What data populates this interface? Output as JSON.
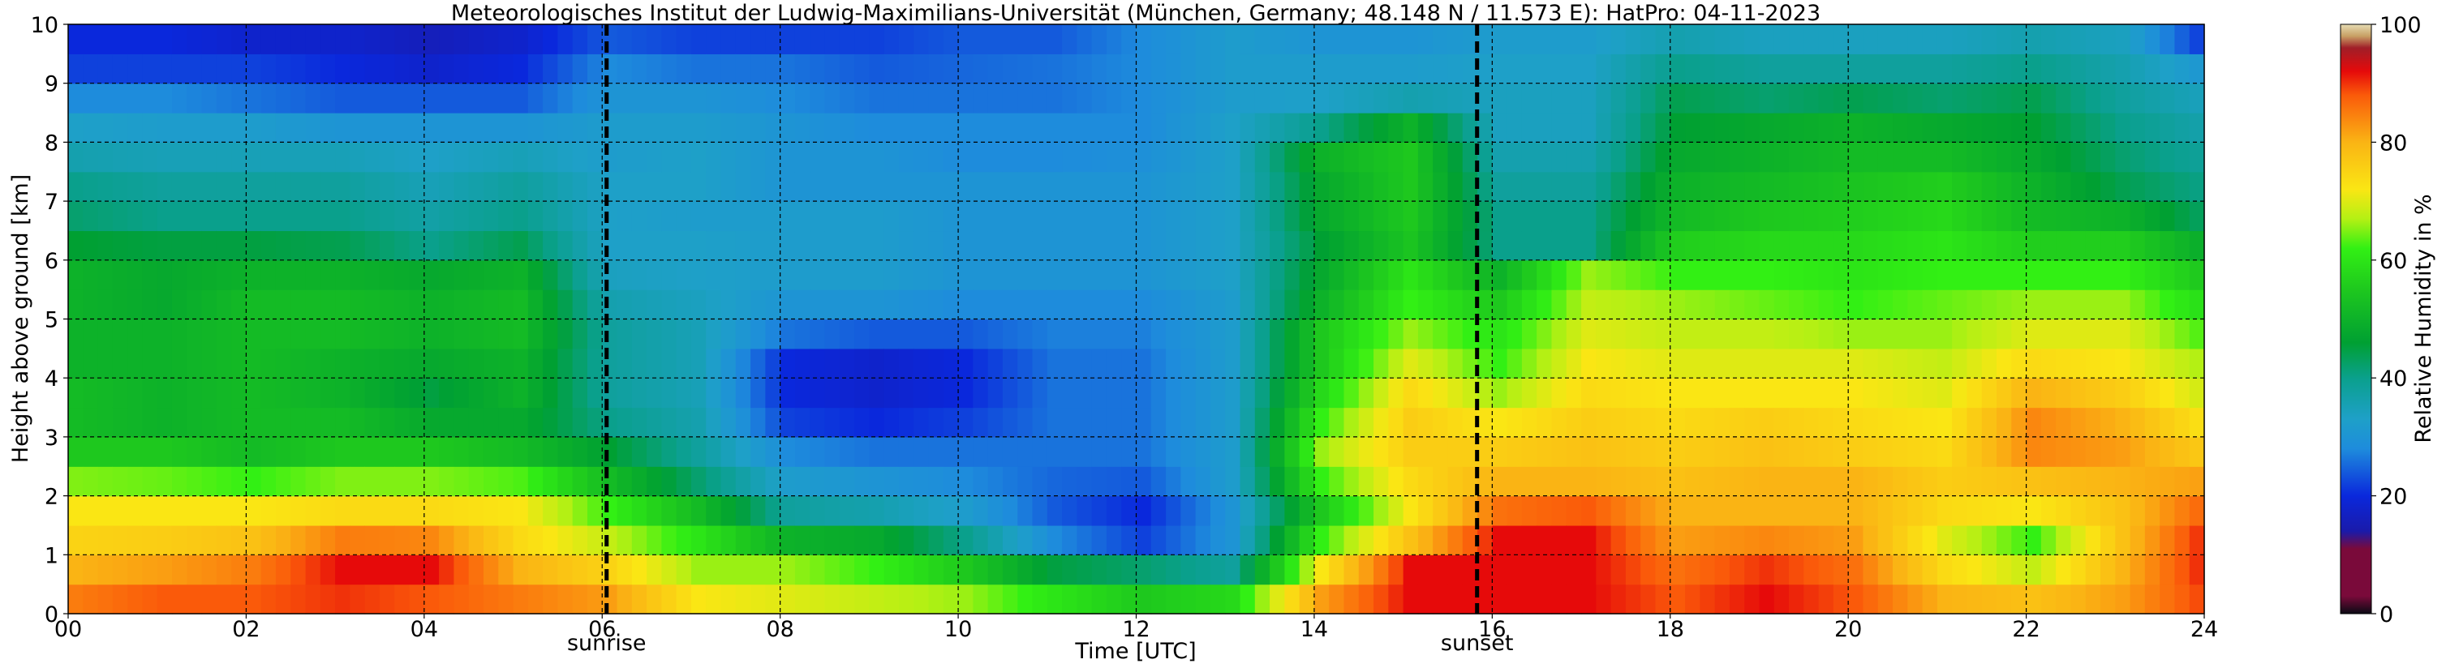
{
  "chart_data": {
    "type": "heatmap",
    "title": "Meteorologisches Institut der Ludwig-Maximilians-Universität (München, Germany; 48.148 N / 11.573 E):    HatPro: 04-11-2023",
    "xlabel": "Time [UTC]",
    "ylabel": "Height above ground [km]",
    "xlim": [
      0,
      24
    ],
    "ylim": [
      0,
      10
    ],
    "x_ticks": [
      "00",
      "02",
      "04",
      "06",
      "08",
      "10",
      "12",
      "14",
      "16",
      "18",
      "20",
      "22",
      "24"
    ],
    "y_ticks": [
      "0",
      "1",
      "2",
      "3",
      "4",
      "5",
      "6",
      "7",
      "8",
      "9",
      "10"
    ],
    "grid": true,
    "colorbar": {
      "label": "Relative Humidity in %",
      "range": [
        0,
        100
      ],
      "ticks": [
        "0",
        "20",
        "40",
        "60",
        "80",
        "100"
      ],
      "stops": [
        {
          "v": 0,
          "color": "#0a0a14"
        },
        {
          "v": 3,
          "color": "#7a0a3a"
        },
        {
          "v": 11,
          "color": "#7a0a3a"
        },
        {
          "v": 14,
          "color": "#1a1aaa"
        },
        {
          "v": 20,
          "color": "#0a28dc"
        },
        {
          "v": 28,
          "color": "#1e8cdc"
        },
        {
          "v": 33,
          "color": "#1ea0c8"
        },
        {
          "v": 40,
          "color": "#0aa08c"
        },
        {
          "v": 46,
          "color": "#00a032"
        },
        {
          "v": 55,
          "color": "#1ec81e"
        },
        {
          "v": 62,
          "color": "#32f014"
        },
        {
          "v": 67,
          "color": "#b4f014"
        },
        {
          "v": 72,
          "color": "#fae614"
        },
        {
          "v": 80,
          "color": "#fab414"
        },
        {
          "v": 88,
          "color": "#fa5a0a"
        },
        {
          "v": 92,
          "color": "#e60a0a"
        },
        {
          "v": 96,
          "color": "#a01e28"
        },
        {
          "v": 98,
          "color": "#c8a064"
        },
        {
          "v": 100,
          "color": "#e6dcb4"
        }
      ]
    },
    "annotations": [
      {
        "label": "sunrise",
        "x": 6.05
      },
      {
        "label": "sunset",
        "x": 15.83
      }
    ],
    "heights_km": [
      0.25,
      0.75,
      1.25,
      1.75,
      2.25,
      2.75,
      3.25,
      3.75,
      4.25,
      4.75,
      5.25,
      5.75,
      6.25,
      6.75,
      7.25,
      7.75,
      8.25,
      8.75,
      9.25,
      9.75
    ],
    "series": [
      {
        "time": 0,
        "rh": [
          85,
          80,
          75,
          72,
          65,
          55,
          52,
          52,
          50,
          50,
          50,
          50,
          46,
          42,
          40,
          36,
          33,
          28,
          22,
          20
        ]
      },
      {
        "time": 1,
        "rh": [
          88,
          82,
          76,
          72,
          64,
          55,
          50,
          50,
          50,
          50,
          48,
          48,
          45,
          40,
          38,
          35,
          32,
          28,
          22,
          20
        ]
      },
      {
        "time": 2,
        "rh": [
          88,
          85,
          78,
          72,
          62,
          52,
          52,
          52,
          52,
          52,
          52,
          50,
          45,
          40,
          38,
          35,
          32,
          26,
          22,
          18
        ]
      },
      {
        "time": 3,
        "rh": [
          90,
          92,
          85,
          74,
          65,
          55,
          52,
          50,
          50,
          52,
          52,
          50,
          44,
          40,
          38,
          35,
          30,
          24,
          20,
          18
        ]
      },
      {
        "time": 4,
        "rh": [
          88,
          92,
          84,
          74,
          65,
          55,
          48,
          45,
          48,
          50,
          50,
          48,
          40,
          37,
          35,
          33,
          30,
          24,
          18,
          16
        ]
      },
      {
        "time": 5,
        "rh": [
          85,
          80,
          74,
          72,
          63,
          52,
          48,
          50,
          50,
          52,
          52,
          50,
          44,
          40,
          38,
          35,
          30,
          24,
          20,
          18
        ]
      },
      {
        "time": 6,
        "rh": [
          82,
          75,
          68,
          62,
          52,
          46,
          40,
          38,
          38,
          38,
          36,
          34,
          33,
          33,
          33,
          32,
          32,
          30,
          28,
          24
        ]
      },
      {
        "time": 7,
        "rh": [
          72,
          66,
          60,
          52,
          42,
          38,
          36,
          35,
          35,
          35,
          34,
          33,
          33,
          32,
          33,
          33,
          32,
          30,
          26,
          22
        ]
      },
      {
        "time": 8,
        "rh": [
          70,
          66,
          50,
          38,
          32,
          28,
          22,
          20,
          20,
          26,
          30,
          32,
          32,
          32,
          30,
          30,
          30,
          28,
          26,
          22
        ]
      },
      {
        "time": 9,
        "rh": [
          68,
          62,
          48,
          36,
          30,
          26,
          20,
          18,
          18,
          24,
          30,
          32,
          32,
          32,
          30,
          30,
          28,
          26,
          24,
          22
        ]
      },
      {
        "time": 10,
        "rh": [
          66,
          55,
          40,
          32,
          28,
          26,
          22,
          20,
          20,
          24,
          28,
          30,
          30,
          30,
          30,
          28,
          28,
          26,
          25,
          24
        ]
      },
      {
        "time": 11,
        "rh": [
          60,
          45,
          28,
          24,
          25,
          26,
          26,
          26,
          26,
          27,
          28,
          30,
          30,
          30,
          30,
          28,
          28,
          26,
          26,
          24
        ]
      },
      {
        "time": 12,
        "rh": [
          55,
          42,
          22,
          20,
          24,
          26,
          26,
          26,
          26,
          27,
          28,
          30,
          30,
          30,
          30,
          29,
          28,
          28,
          28,
          28
        ]
      },
      {
        "time": 13,
        "rh": [
          58,
          38,
          30,
          30,
          32,
          32,
          32,
          32,
          32,
          32,
          32,
          33,
          33,
          33,
          33,
          33,
          33,
          32,
          32,
          32
        ]
      },
      {
        "time": 14,
        "rh": [
          82,
          72,
          62,
          55,
          62,
          66,
          62,
          58,
          55,
          55,
          50,
          48,
          46,
          48,
          48,
          50,
          40,
          33,
          32,
          30
        ]
      },
      {
        "time": 15,
        "rh": [
          92,
          92,
          78,
          72,
          74,
          76,
          76,
          74,
          70,
          66,
          62,
          60,
          54,
          55,
          55,
          55,
          50,
          36,
          32,
          30
        ]
      },
      {
        "time": 16,
        "rh": [
          92,
          92,
          92,
          86,
          80,
          76,
          72,
          66,
          62,
          60,
          55,
          50,
          40,
          40,
          38,
          36,
          34,
          34,
          33,
          32
        ]
      },
      {
        "time": 17,
        "rh": [
          92,
          92,
          92,
          88,
          80,
          78,
          76,
          74,
          72,
          70,
          68,
          66,
          40,
          40,
          38,
          36,
          34,
          34,
          33,
          32
        ]
      },
      {
        "time": 18,
        "rh": [
          88,
          86,
          82,
          80,
          78,
          76,
          74,
          72,
          70,
          68,
          66,
          62,
          56,
          52,
          50,
          48,
          46,
          44,
          40,
          36
        ]
      },
      {
        "time": 19,
        "rh": [
          92,
          90,
          84,
          80,
          80,
          78,
          76,
          72,
          70,
          68,
          64,
          62,
          58,
          55,
          52,
          50,
          48,
          42,
          38,
          34
        ]
      },
      {
        "time": 20,
        "rh": [
          88,
          86,
          82,
          80,
          80,
          76,
          74,
          72,
          70,
          66,
          62,
          60,
          58,
          56,
          54,
          52,
          50,
          44,
          38,
          34
        ]
      },
      {
        "time": 21,
        "rh": [
          80,
          74,
          70,
          74,
          76,
          74,
          72,
          70,
          68,
          66,
          64,
          62,
          60,
          58,
          56,
          52,
          48,
          42,
          38,
          34
        ]
      },
      {
        "time": 22,
        "rh": [
          78,
          68,
          62,
          72,
          78,
          84,
          84,
          80,
          74,
          70,
          66,
          62,
          56,
          52,
          50,
          48,
          46,
          44,
          40,
          36
        ]
      },
      {
        "time": 23,
        "rh": [
          82,
          80,
          78,
          78,
          80,
          82,
          80,
          76,
          72,
          70,
          66,
          62,
          56,
          50,
          44,
          42,
          40,
          38,
          36,
          34
        ]
      },
      {
        "time": 24,
        "rh": [
          90,
          92,
          92,
          88,
          82,
          76,
          72,
          68,
          66,
          62,
          58,
          54,
          48,
          42,
          40,
          38,
          36,
          34,
          30,
          20
        ]
      }
    ]
  }
}
